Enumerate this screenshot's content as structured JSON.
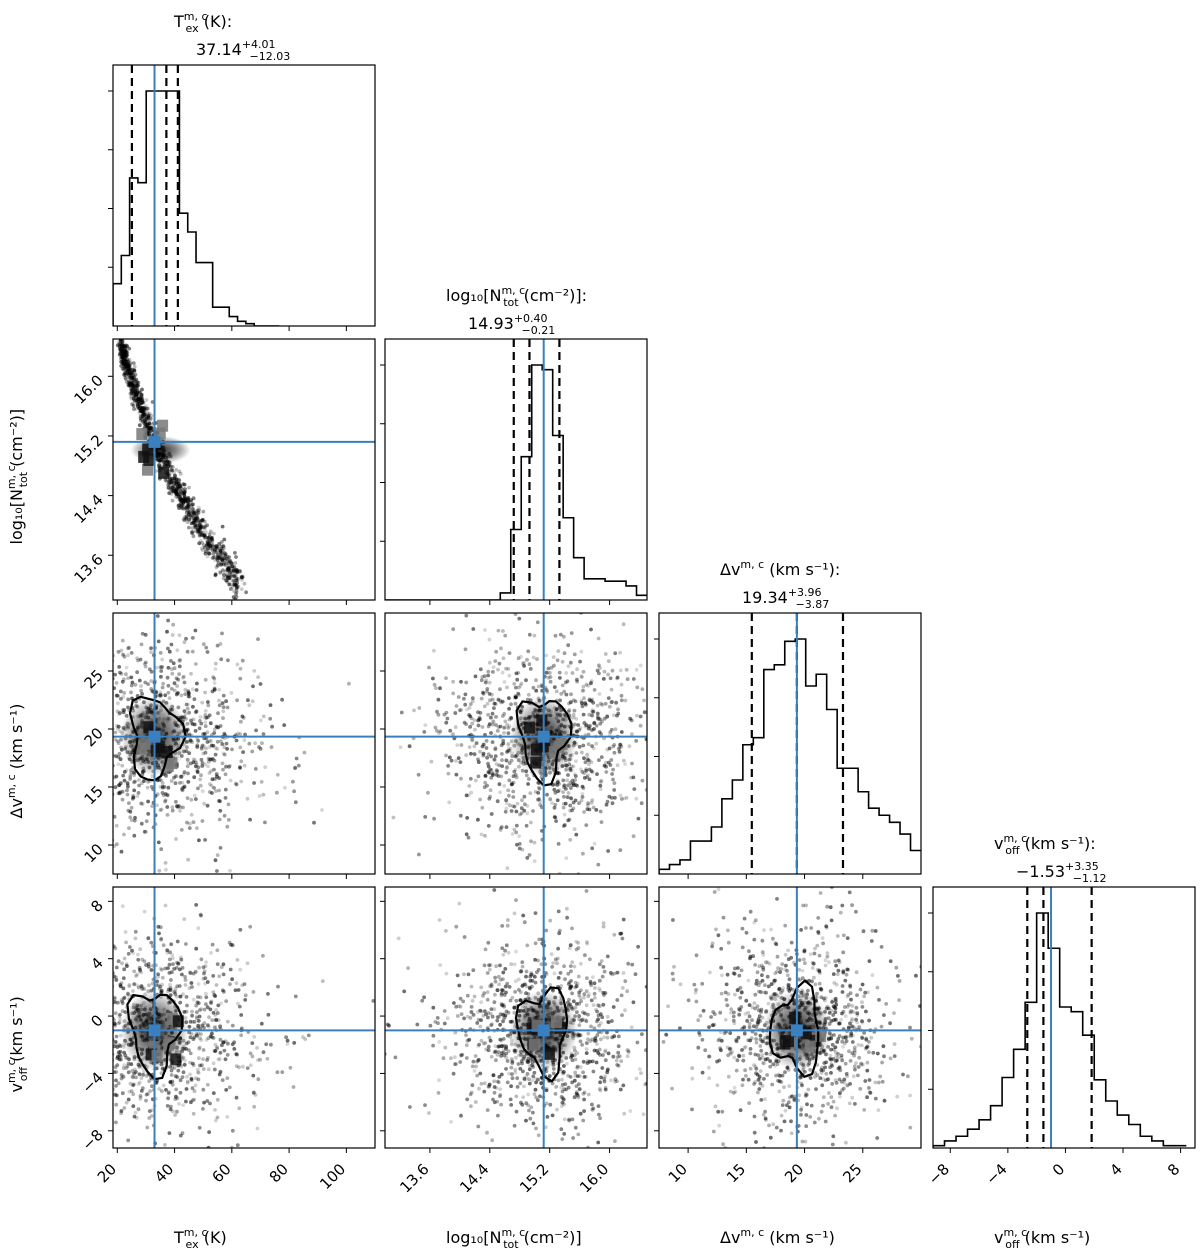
{
  "chart_data": {
    "type": "corner",
    "accent_color": "#3a7fbf",
    "params": [
      {
        "id": "tex",
        "label_main": "T",
        "label_sup": "m, c",
        "label_sub": "ex",
        "label_tail": " (K)",
        "title_suffix": ":",
        "median": "37.14",
        "err_plus": "+4.01",
        "err_minus": "−12.03",
        "truth": 33,
        "quantiles": [
          25.1,
          37.14,
          41.15
        ],
        "range": [
          18.5,
          110
        ],
        "ticks": [
          20,
          40,
          60,
          80,
          100
        ],
        "tick_labels": [
          "20",
          "40",
          "60",
          "80",
          "100"
        ],
        "hist_edges": [
          18.5,
          21.4,
          24.3,
          27.2,
          30.1,
          33,
          35.9,
          38.8,
          41.7,
          44.6,
          47.5,
          50.4,
          53.3,
          56.2,
          59.1,
          62,
          64.9,
          67.8,
          70.7,
          73.6,
          76.5
        ],
        "hist_counts": [
          18,
          30,
          63,
          61,
          100,
          100,
          100,
          100,
          48,
          40,
          27,
          27,
          8,
          8,
          4,
          2,
          1,
          0,
          0,
          0
        ]
      },
      {
        "id": "ntot",
        "label_main": "log₁₀[N",
        "label_sup": "m, c",
        "label_sub": "tot",
        "label_tail": " (cm⁻²)]",
        "title_suffix": ":",
        "median": "14.93",
        "err_plus": "+0.40",
        "err_minus": "−0.21",
        "truth": 15.12,
        "quantiles": [
          14.72,
          14.93,
          15.33
        ],
        "range": [
          13.0,
          16.5
        ],
        "ticks": [
          13.6,
          14.4,
          15.2,
          16.0
        ],
        "tick_labels": [
          "13.6",
          "14.4",
          "15.2",
          "16.0"
        ],
        "hist_edges": [
          13.0,
          13.14,
          13.28,
          13.42,
          13.56,
          13.7,
          13.84,
          13.98,
          14.12,
          14.26,
          14.4,
          14.54,
          14.68,
          14.82,
          14.96,
          15.1,
          15.24,
          15.38,
          15.52,
          15.66,
          15.8,
          15.94,
          16.08,
          16.22,
          16.36,
          16.5
        ],
        "hist_counts": [
          0,
          0,
          0,
          0,
          0,
          0,
          0,
          0,
          0,
          0,
          0,
          3,
          30,
          61,
          100,
          98,
          70,
          35,
          18,
          9,
          9,
          8,
          8,
          6,
          2
        ]
      },
      {
        "id": "dv",
        "label_main": "Δv",
        "label_sup": "m, c",
        "label_sub": "",
        "label_tail": " (km s⁻¹)",
        "title_suffix": ":",
        "median": "19.34",
        "err_plus": "+3.96",
        "err_minus": "−3.87",
        "truth": 19.34,
        "quantiles": [
          15.47,
          19.34,
          23.3
        ],
        "range": [
          7.5,
          30
        ],
        "ticks": [
          10,
          15,
          20,
          25
        ],
        "tick_labels": [
          "10",
          "15",
          "20",
          "25"
        ],
        "hist_edges": [
          7.5,
          8.4,
          9.3,
          10.2,
          11.1,
          12,
          12.9,
          13.8,
          14.7,
          15.6,
          16.5,
          17.4,
          18.3,
          19.2,
          20.1,
          21,
          21.9,
          22.8,
          23.7,
          24.6,
          25.5,
          26.4,
          27.3,
          28.2,
          29.1,
          30
        ],
        "hist_counts": [
          2,
          4,
          6,
          14,
          14,
          20,
          32,
          40,
          55,
          58,
          87,
          89,
          99,
          100,
          80,
          85,
          70,
          45,
          45,
          35,
          28,
          25,
          22,
          17,
          10
        ]
      },
      {
        "id": "voff",
        "label_main": "v",
        "label_sup": "m, c",
        "label_sub": "off",
        "label_tail": " (km s⁻¹)",
        "title_suffix": ":",
        "median": "−1.53",
        "err_plus": "+3.35",
        "err_minus": "−1.12",
        "truth": -1,
        "quantiles": [
          -2.65,
          -1.53,
          1.82
        ],
        "range": [
          -9.2,
          9
        ],
        "ticks": [
          -8,
          -4,
          0,
          4,
          8
        ],
        "tick_labels": [
          "−8",
          "−4",
          "0",
          "4",
          "8"
        ],
        "hist_edges": [
          -9.2,
          -8.4,
          -7.6,
          -6.8,
          -6.0,
          -5.2,
          -4.4,
          -3.6,
          -2.8,
          -2.0,
          -1.2,
          -0.4,
          0.4,
          1.2,
          2.0,
          2.8,
          3.6,
          4.4,
          5.2,
          6.0,
          6.8,
          7.6,
          8.4
        ],
        "hist_counts": [
          1,
          3,
          5,
          8,
          12,
          18,
          30,
          42,
          62,
          100,
          85,
          60,
          58,
          48,
          29,
          20,
          14,
          10,
          5,
          3,
          1,
          1
        ]
      }
    ]
  }
}
